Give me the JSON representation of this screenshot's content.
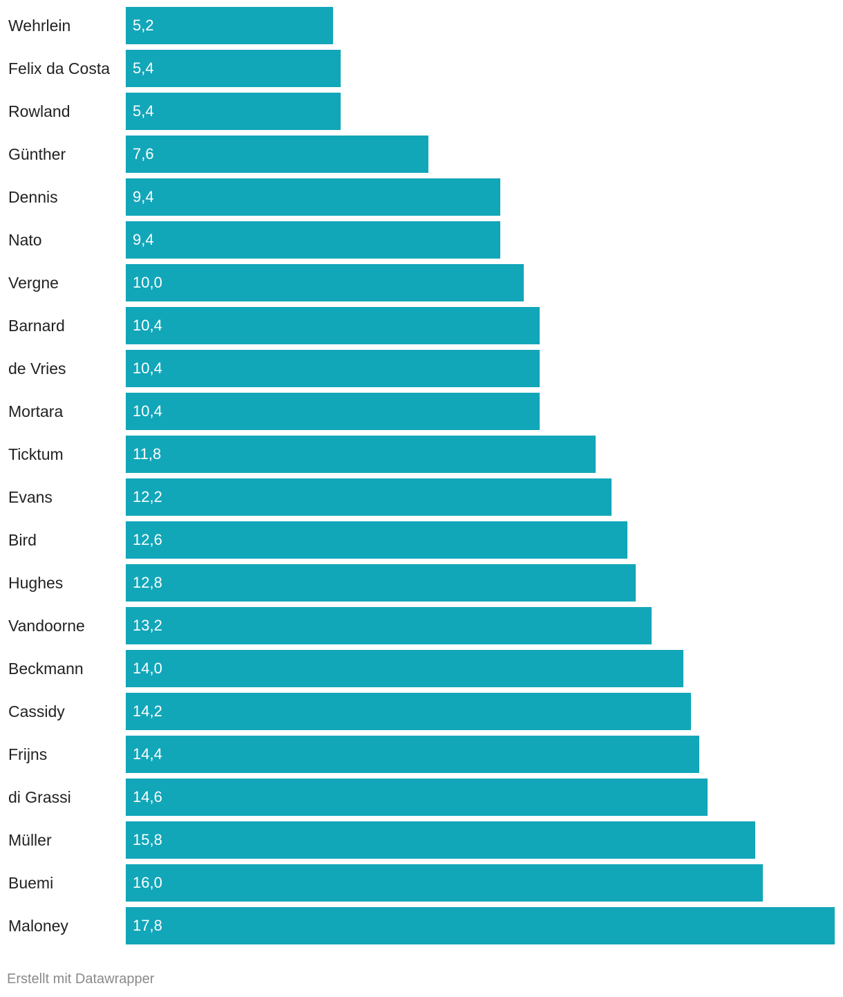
{
  "chart_data": {
    "type": "bar",
    "orientation": "horizontal",
    "categories": [
      "Wehrlein",
      "Felix da Costa",
      "Rowland",
      "Günther",
      "Dennis",
      "Nato",
      "Vergne",
      "Barnard",
      "de Vries",
      "Mortara",
      "Ticktum",
      "Evans",
      "Bird",
      "Hughes",
      "Vandoorne",
      "Beckmann",
      "Cassidy",
      "Frijns",
      "di Grassi",
      "Müller",
      "Buemi",
      "Maloney"
    ],
    "values": [
      5.2,
      5.4,
      5.4,
      7.6,
      9.4,
      9.4,
      10.0,
      10.4,
      10.4,
      10.4,
      11.8,
      12.2,
      12.6,
      12.8,
      13.2,
      14.0,
      14.2,
      14.4,
      14.6,
      15.8,
      16.0,
      17.8
    ],
    "value_labels": [
      "5,2",
      "5,4",
      "5,4",
      "7,6",
      "9,4",
      "9,4",
      "10,0",
      "10,4",
      "10,4",
      "10,4",
      "11,8",
      "12,2",
      "12,6",
      "12,8",
      "13,2",
      "14,0",
      "14,2",
      "14,4",
      "14,6",
      "15,8",
      "16,0",
      "17,8"
    ],
    "xlim": [
      0,
      17.8
    ],
    "bar_color": "#12a6b9",
    "title": "",
    "xlabel": "",
    "ylabel": ""
  },
  "footer": {
    "credit": "Erstellt mit Datawrapper"
  }
}
